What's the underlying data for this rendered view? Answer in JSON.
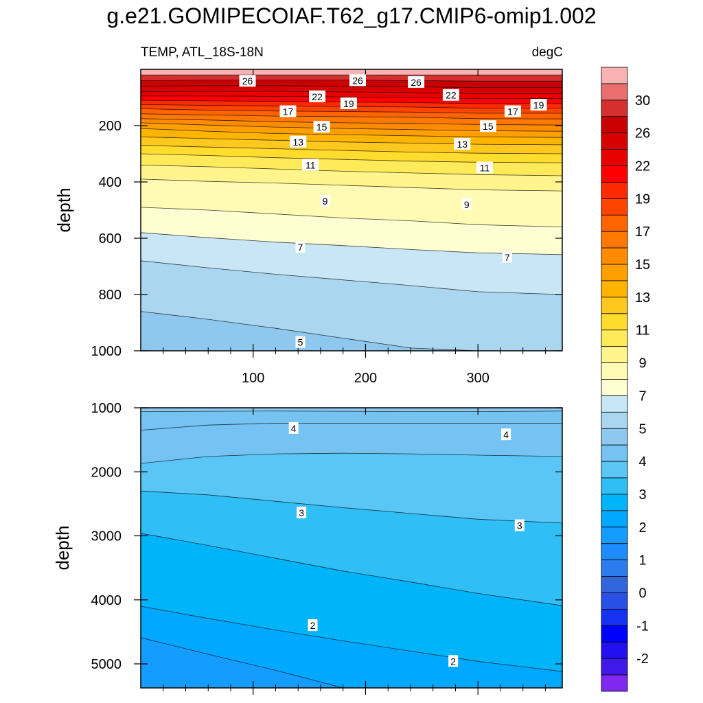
{
  "title": "g.e21.GOMIPECOIAF.T62_g17.CMIP6-omip1.002",
  "chart_data": {
    "type": "contour",
    "variable_label": "TEMP, ATL_18S-18N",
    "units_label": "degC",
    "x_ticks": [
      "100",
      "200",
      "300"
    ],
    "x_tick_values": [
      100,
      200,
      300
    ],
    "x_range": [
      0,
      375
    ],
    "panels": [
      {
        "ylabel": "depth",
        "ylim": [
          0,
          1000
        ],
        "y_ticks": [
          "200",
          "400",
          "600",
          "800",
          "1000"
        ],
        "y_tick_values": [
          200,
          400,
          600,
          800,
          1000
        ],
        "show_x_tick_labels": true,
        "x_sample": [
          0,
          60,
          120,
          180,
          240,
          300,
          375
        ],
        "isotherms": [
          {
            "level": 28,
            "depth": [
              20,
              20,
              20,
              20,
              20,
              20,
              20
            ]
          },
          {
            "level": 26,
            "depth": [
              40,
              38,
              38,
              38,
              40,
              42,
              42
            ]
          },
          {
            "level": 24,
            "depth": [
              60,
              58,
              58,
              60,
              62,
              65,
              65
            ]
          },
          {
            "level": 22,
            "depth": [
              80,
              78,
              78,
              80,
              83,
              86,
              86
            ]
          },
          {
            "level": 21,
            "depth": [
              95,
              95,
              96,
              98,
              100,
              104,
              104
            ]
          },
          {
            "level": 20,
            "depth": [
              110,
              112,
              114,
              116,
              118,
              122,
              122
            ]
          },
          {
            "level": 19,
            "depth": [
              125,
              128,
              130,
              132,
              134,
              138,
              138
            ]
          },
          {
            "level": 18,
            "depth": [
              140,
              145,
              148,
              150,
              152,
              156,
              156
            ]
          },
          {
            "level": 17,
            "depth": [
              158,
              162,
              166,
              168,
              170,
              175,
              176
            ]
          },
          {
            "level": 16,
            "depth": [
              175,
              180,
              186,
              190,
              192,
              196,
              198
            ]
          },
          {
            "level": 15,
            "depth": [
              190,
              198,
              205,
              210,
              214,
              218,
              220
            ]
          },
          {
            "level": 14,
            "depth": [
              210,
              220,
              228,
              232,
              236,
              240,
              242
            ]
          },
          {
            "level": 13,
            "depth": [
              240,
              246,
              252,
              258,
              262,
              266,
              268
            ]
          },
          {
            "level": 12,
            "depth": [
              270,
              276,
              282,
              288,
              294,
              298,
              300
            ]
          },
          {
            "level": 11,
            "depth": [
              300,
              306,
              314,
              320,
              326,
              330,
              332
            ]
          },
          {
            "level": 10,
            "depth": [
              340,
              346,
              354,
              362,
              368,
              374,
              378
            ]
          },
          {
            "level": 9,
            "depth": [
              390,
              398,
              404,
              412,
              420,
              428,
              432
            ]
          },
          {
            "level": 8,
            "depth": [
              490,
              500,
              514,
              528,
              538,
              552,
              560
            ]
          },
          {
            "level": 7,
            "depth": [
              580,
              598,
              614,
              626,
              640,
              652,
              658
            ]
          },
          {
            "level": 6,
            "depth": [
              680,
              705,
              728,
              748,
              768,
              790,
              800
            ]
          },
          {
            "level": 5,
            "depth": [
              860,
              888,
              920,
              955,
              990,
              1020,
              1040
            ]
          }
        ],
        "labels": [
          {
            "text": "26",
            "x": 95,
            "depth": 42
          },
          {
            "text": "26",
            "x": 193,
            "depth": 40
          },
          {
            "text": "26",
            "x": 245,
            "depth": 46
          },
          {
            "text": "22",
            "x": 157,
            "depth": 97
          },
          {
            "text": "22",
            "x": 276,
            "depth": 92
          },
          {
            "text": "19",
            "x": 185,
            "depth": 122
          },
          {
            "text": "19",
            "x": 354,
            "depth": 127
          },
          {
            "text": "17",
            "x": 131,
            "depth": 150
          },
          {
            "text": "17",
            "x": 331,
            "depth": 150
          },
          {
            "text": "15",
            "x": 161,
            "depth": 205
          },
          {
            "text": "15",
            "x": 309,
            "depth": 203
          },
          {
            "text": "13",
            "x": 140,
            "depth": 258
          },
          {
            "text": "13",
            "x": 286,
            "depth": 266
          },
          {
            "text": "11",
            "x": 151,
            "depth": 340
          },
          {
            "text": "11",
            "x": 306,
            "depth": 350
          },
          {
            "text": "9",
            "x": 164,
            "depth": 468
          },
          {
            "text": "9",
            "x": 290,
            "depth": 480
          },
          {
            "text": "7",
            "x": 142,
            "depth": 632
          },
          {
            "text": "7",
            "x": 326,
            "depth": 668
          },
          {
            "text": "5",
            "x": 142,
            "depth": 970
          }
        ]
      },
      {
        "ylabel": "depth",
        "ylim": [
          1000,
          5375
        ],
        "y_ticks": [
          "1000",
          "2000",
          "3000",
          "4000",
          "5000"
        ],
        "y_tick_values": [
          1000,
          2000,
          3000,
          4000,
          5000
        ],
        "show_x_tick_labels": false,
        "x_sample": [
          0,
          60,
          120,
          180,
          240,
          300,
          375
        ],
        "isotherms": [
          {
            "level": 4.5,
            "depth": [
              1060,
              1055,
              1050,
              1055,
              1060,
              1060,
              1050
            ]
          },
          {
            "level": 4.25,
            "depth": [
              1350,
              1270,
              1240,
              1240,
              1240,
              1240,
              1240
            ]
          },
          {
            "level": 4,
            "depth": [
              1870,
              1760,
              1720,
              1710,
              1720,
              1740,
              1760
            ]
          },
          {
            "level": 3.5,
            "depth": [
              2300,
              2360,
              2460,
              2560,
              2650,
              2740,
              2800
            ]
          },
          {
            "level": 3,
            "depth": [
              2960,
              3150,
              3350,
              3550,
              3720,
              3900,
              4090
            ]
          },
          {
            "level": 2.5,
            "depth": [
              4100,
              4290,
              4470,
              4640,
              4800,
              4960,
              5120
            ]
          },
          {
            "level": 2,
            "depth": [
              4590,
              4850,
              5100,
              5375,
              5375,
              5375,
              5375
            ]
          }
        ],
        "labels": [
          {
            "text": "4",
            "x": 136,
            "depth": 1320
          },
          {
            "text": "4",
            "x": 325,
            "depth": 1420
          },
          {
            "text": "3",
            "x": 143,
            "depth": 2640
          },
          {
            "text": "3",
            "x": 337,
            "depth": 2840
          },
          {
            "text": "2",
            "x": 153,
            "depth": 4400
          },
          {
            "text": "2",
            "x": 278,
            "depth": 4960
          }
        ]
      }
    ],
    "colorbar": {
      "labels": [
        "30",
        "26",
        "22",
        "19",
        "17",
        "15",
        "13",
        "11",
        "9",
        "7",
        "5",
        "4",
        "3",
        "2",
        "1",
        "0",
        "-1",
        "-2"
      ],
      "colors": [
        "#f9b3b3",
        "#e96f6f",
        "#d62f2f",
        "#c80000",
        "#d80000",
        "#e80000",
        "#ff0000",
        "#ff2a00",
        "#ff4400",
        "#ff6400",
        "#ff7800",
        "#ff8c00",
        "#ffa000",
        "#ffb400",
        "#ffc81e",
        "#ffdc2e",
        "#ffeb5a",
        "#fff58c",
        "#fffbb4",
        "#fffed2",
        "#c8e6f5",
        "#aad6f0",
        "#8ec8ee",
        "#74c3f2",
        "#5ac6f6",
        "#2fbef6",
        "#00b4fa",
        "#00a8ff",
        "#149cff",
        "#1e8cff",
        "#2c7cee",
        "#3264dc",
        "#2850e6",
        "#1432f0",
        "#0000ff",
        "#2210f0",
        "#4018e8",
        "#7e28f0"
      ]
    }
  }
}
